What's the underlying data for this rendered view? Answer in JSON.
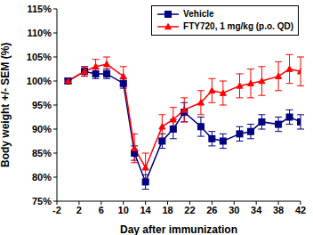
{
  "chart_data": {
    "type": "line",
    "x_label": "Day after immunization",
    "y_label": "Body weight +/- SEM (%)",
    "x": [
      0,
      3,
      5,
      7,
      10,
      12,
      14,
      17,
      19,
      21,
      24,
      26,
      28,
      31,
      33,
      35,
      38,
      40,
      42
    ],
    "xlim": [
      -2,
      42
    ],
    "xticks": [
      -2,
      2,
      6,
      10,
      14,
      18,
      22,
      26,
      30,
      34,
      38,
      42
    ],
    "ylim": [
      75,
      115
    ],
    "yticks": [
      {
        "value": 75,
        "label": "75%"
      },
      {
        "value": 80,
        "label": "80%"
      },
      {
        "value": 85,
        "label": "85%"
      },
      {
        "value": 90,
        "label": "90%"
      },
      {
        "value": 95,
        "label": "95%"
      },
      {
        "value": 100,
        "label": "100%"
      },
      {
        "value": 105,
        "label": "105%"
      },
      {
        "value": 110,
        "label": "110%"
      },
      {
        "value": 115,
        "label": "115%"
      }
    ],
    "grid": false,
    "legend": "top-right",
    "series": [
      {
        "name": "Vehicle",
        "color": "#000080",
        "marker": "square",
        "values": [
          100,
          102,
          101.5,
          101.5,
          99.5,
          85,
          79,
          87.5,
          90,
          93.5,
          90.5,
          88,
          87.5,
          89,
          89.5,
          91.5,
          91,
          92.5,
          91.5
        ],
        "errors": [
          0.5,
          1,
          1,
          1,
          1,
          1.5,
          1.5,
          1.5,
          2,
          2,
          2,
          1.5,
          1.5,
          1.5,
          1.5,
          1.5,
          1.5,
          1.5,
          1.5
        ]
      },
      {
        "name": "FTY720, 1 mg/kg (p.o. QD)",
        "color": "#ff0000",
        "marker": "triangle",
        "values": [
          100,
          102,
          103,
          103.5,
          101,
          86,
          82,
          90.5,
          92,
          94,
          95.5,
          98,
          97.5,
          99,
          99.5,
          100,
          101,
          102.5,
          102
        ],
        "errors": [
          0.5,
          1,
          1.5,
          1.5,
          2,
          3,
          3,
          2.5,
          2.5,
          2.5,
          2.5,
          2.5,
          2.5,
          2.5,
          3,
          3,
          3,
          3,
          3
        ]
      }
    ]
  }
}
